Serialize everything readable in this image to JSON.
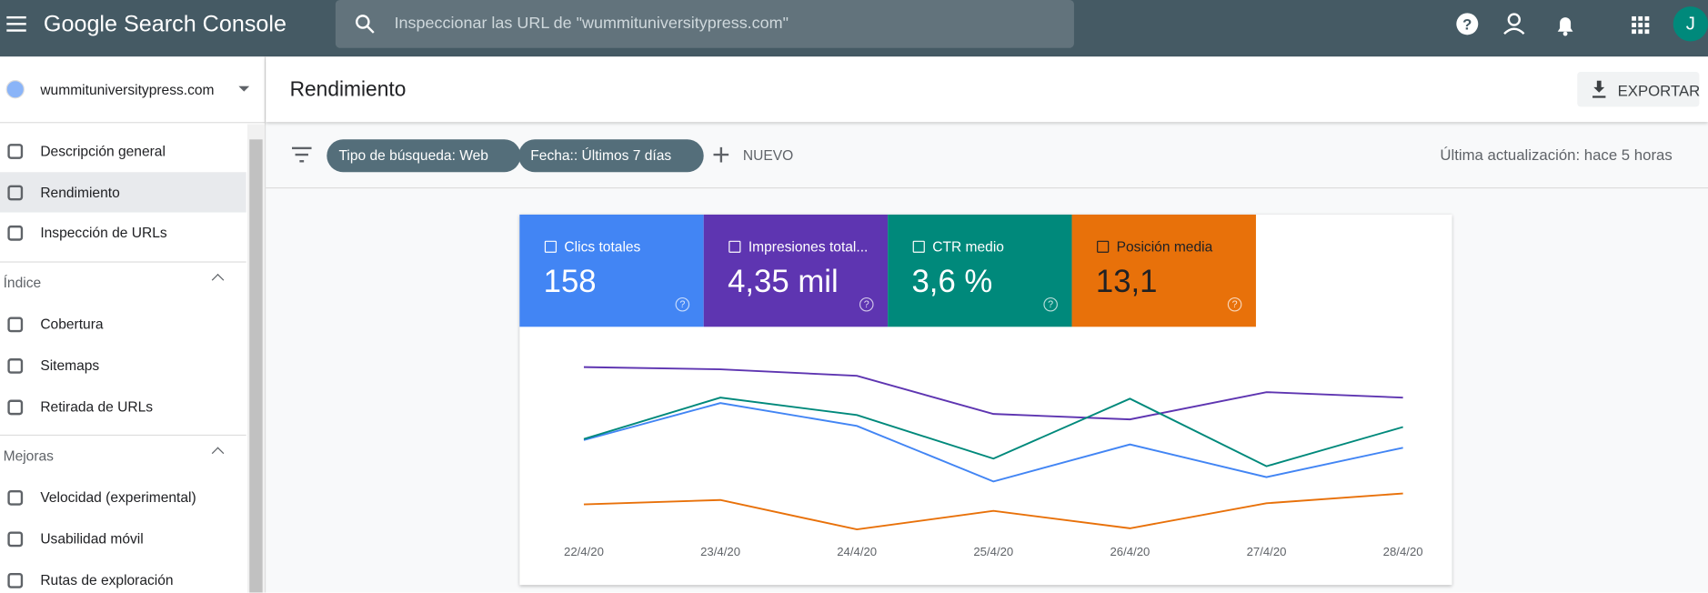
{
  "header": {
    "product": "Google Search Console",
    "search": "Inspeccionar las URL de \"wummituniversitypress.com\"",
    "avatar": "J"
  },
  "property": "wummituniversitypress.com",
  "nav": {
    "top": [
      "Descripción general",
      "Rendimiento",
      "Inspección de URLs"
    ],
    "sections": [
      {
        "title": "Índice",
        "items": [
          "Cobertura",
          "Sitemaps",
          "Retirada de URLs"
        ]
      },
      {
        "title": "Mejoras",
        "items": [
          "Velocidad (experimental)",
          "Usabilidad móvil",
          "Rutas de exploración"
        ]
      }
    ]
  },
  "page": {
    "title": "Rendimiento",
    "export": "EXPORTAR"
  },
  "filters": {
    "chips": [
      "Tipo de búsqueda: Web",
      "Fecha:: Últimos 7 días"
    ],
    "new": "NUEVO",
    "updated": "Última actualización: hace 5 horas"
  },
  "chart_data": {
    "type": "line",
    "categories": [
      "22/4/20",
      "23/4/20",
      "24/4/20",
      "25/4/20",
      "26/4/20",
      "27/4/20",
      "28/4/20"
    ],
    "ylim": [
      0,
      100
    ],
    "series": [
      {
        "name": "Clics totales",
        "total": "158",
        "color": "#4285f4",
        "values": [
          48,
          65,
          54.5,
          29,
          46,
          31,
          44.5
        ]
      },
      {
        "name": "Impresiones total...",
        "total": "4,35 mil",
        "color": "#5e35b1",
        "values": [
          81.5,
          80.5,
          77.5,
          60,
          57.5,
          70,
          67.5
        ]
      },
      {
        "name": "CTR medio",
        "total": "3,6 %",
        "color": "#00897b",
        "values": [
          48.5,
          67.5,
          59.5,
          39.5,
          67,
          36,
          54
        ]
      },
      {
        "name": "Posición media",
        "total": "13,1",
        "color": "#e8710a",
        "values": [
          18.5,
          20.5,
          7,
          15.5,
          7.5,
          19,
          23.5
        ]
      }
    ]
  }
}
